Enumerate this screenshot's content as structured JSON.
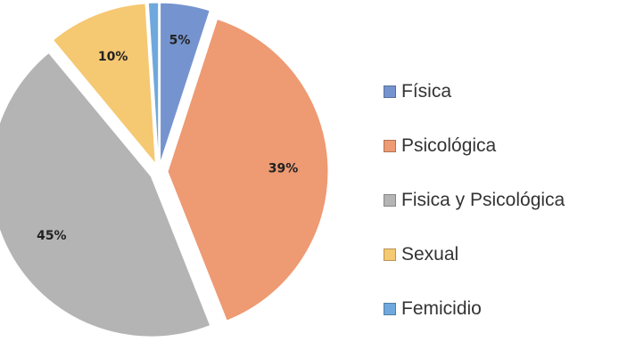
{
  "chart_data": {
    "type": "pie",
    "exploded": true,
    "legend_position": "right",
    "slices": [
      {
        "label": "Física",
        "value": 5,
        "display": "5%",
        "color": "#7594CF"
      },
      {
        "label": "Psicológica",
        "value": 39,
        "display": "39%",
        "color": "#EE9A73"
      },
      {
        "label": "Fisica y Psicológica",
        "value": 45,
        "display": "45%",
        "color": "#B4B4B4"
      },
      {
        "label": "Sexual",
        "value": 10,
        "display": "10%",
        "color": "#F5C872"
      },
      {
        "label": "Femicidio",
        "value": 1,
        "display": "1%",
        "color": "#6FA8DC"
      }
    ]
  }
}
